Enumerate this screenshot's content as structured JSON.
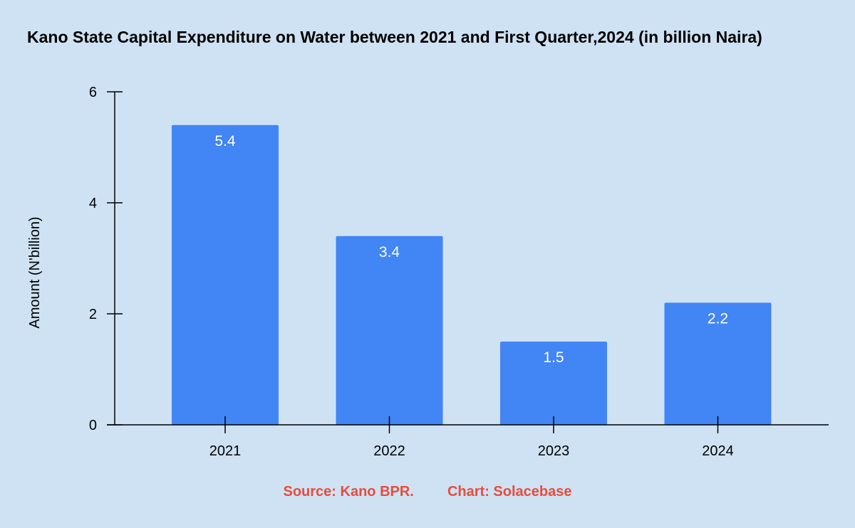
{
  "chart_data": {
    "type": "bar",
    "title": "Kano State Capital Expenditure on Water between 2021 and First Quarter,2024 (in billion Naira)",
    "xlabel": "",
    "ylabel": "Amount (N'billion)",
    "categories": [
      "2021",
      "2022",
      "2023",
      "2024"
    ],
    "values": [
      5.4,
      3.4,
      1.5,
      2.2
    ],
    "data_labels": [
      "5.4",
      "3.4",
      "1.5",
      "2.2"
    ],
    "ylim": [
      0,
      6
    ],
    "y_ticks": [
      0,
      2,
      4,
      6
    ],
    "grid": false,
    "legend": "none"
  },
  "footer": {
    "source": "Source: Kano BPR.",
    "credit": "Chart: Solacebase"
  },
  "colors": {
    "background": "#cfe2f3",
    "bar": "#4285f4",
    "data_label": "#ffffff",
    "footer_text": "#e74c3c",
    "axis": "#000000"
  }
}
